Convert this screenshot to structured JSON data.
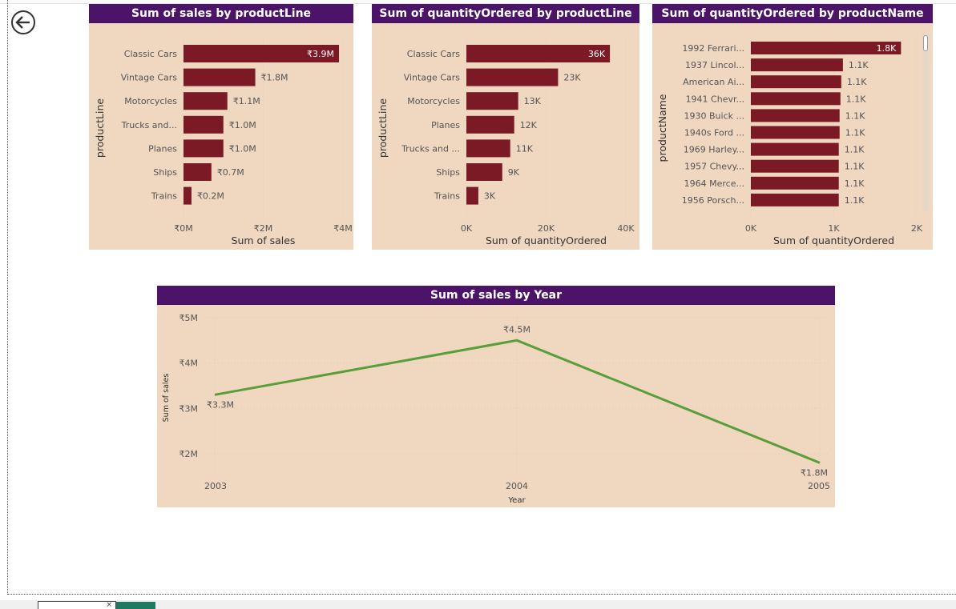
{
  "colors": {
    "bar": "#7b1a24",
    "line": "#5a9e3a",
    "title_bg": "#4b1468",
    "panel_bg": "#efd7c0",
    "axis_text": "#555555"
  },
  "icons": {
    "back": "back-arrow-icon"
  },
  "chart_data": [
    {
      "type": "bar",
      "orientation": "horizontal",
      "title": "Sum of sales by productLine",
      "xlabel": "Sum of sales",
      "ylabel": "productLine",
      "categories": [
        "Classic Cars",
        "Vintage Cars",
        "Motorcycles",
        "Trucks and...",
        "Planes",
        "Ships",
        "Trains"
      ],
      "values": [
        3.9,
        1.8,
        1.1,
        1.0,
        1.0,
        0.7,
        0.2
      ],
      "value_labels": [
        "₹3.9M",
        "₹1.8M",
        "₹1.1M",
        "₹1.0M",
        "₹1.0M",
        "₹0.7M",
        "₹0.2M"
      ],
      "xlim": [
        0,
        4
      ],
      "xticks": [
        0,
        2,
        4
      ],
      "xtick_labels": [
        "₹0M",
        "₹2M",
        "₹4M"
      ],
      "inside_label_first": true
    },
    {
      "type": "bar",
      "orientation": "horizontal",
      "title": "Sum of quantityOrdered by productLine",
      "xlabel": "Sum of quantityOrdered",
      "ylabel": "productLine",
      "categories": [
        "Classic Cars",
        "Vintage Cars",
        "Motorcycles",
        "Planes",
        "Trucks and ...",
        "Ships",
        "Trains"
      ],
      "values": [
        36,
        23,
        13,
        12,
        11,
        9,
        3
      ],
      "value_labels": [
        "36K",
        "23K",
        "13K",
        "12K",
        "11K",
        "9K",
        "3K"
      ],
      "xlim": [
        0,
        40
      ],
      "xticks": [
        0,
        20,
        40
      ],
      "xtick_labels": [
        "0K",
        "20K",
        "40K"
      ],
      "inside_label_first": true
    },
    {
      "type": "bar",
      "orientation": "horizontal",
      "title": "Sum of quantityOrdered by productName",
      "xlabel": "Sum of quantityOrdered",
      "ylabel": "productName",
      "categories": [
        "1992 Ferrari...",
        "1937 Lincol...",
        "American Ai...",
        "1941 Chevr...",
        "1930 Buick ...",
        "1940s Ford ...",
        "1969 Harley...",
        "1957 Chevy...",
        "1964 Merce...",
        "1956 Porsch..."
      ],
      "values": [
        1.81,
        1.11,
        1.09,
        1.08,
        1.07,
        1.07,
        1.06,
        1.06,
        1.06,
        1.06
      ],
      "value_labels": [
        "1.8K",
        "1.1K",
        "1.1K",
        "1.1K",
        "1.1K",
        "1.1K",
        "1.1K",
        "1.1K",
        "1.1K",
        "1.1K"
      ],
      "xlim": [
        0,
        2
      ],
      "xticks": [
        0,
        1,
        2
      ],
      "xtick_labels": [
        "0K",
        "1K",
        "2K"
      ],
      "inside_label_first": true
    },
    {
      "type": "line",
      "title": "Sum of sales by Year",
      "xlabel": "Year",
      "ylabel": "Sum of sales",
      "x": [
        "2003",
        "2004",
        "2005"
      ],
      "values": [
        3.3,
        4.5,
        1.8
      ],
      "value_labels": [
        "₹3.3M",
        "₹4.5M",
        "₹1.8M"
      ],
      "ylim": [
        2,
        5
      ],
      "yticks": [
        2,
        3,
        4,
        5
      ],
      "ytick_labels": [
        "₹2M",
        "₹3M",
        "₹4M",
        "₹5M"
      ]
    }
  ]
}
